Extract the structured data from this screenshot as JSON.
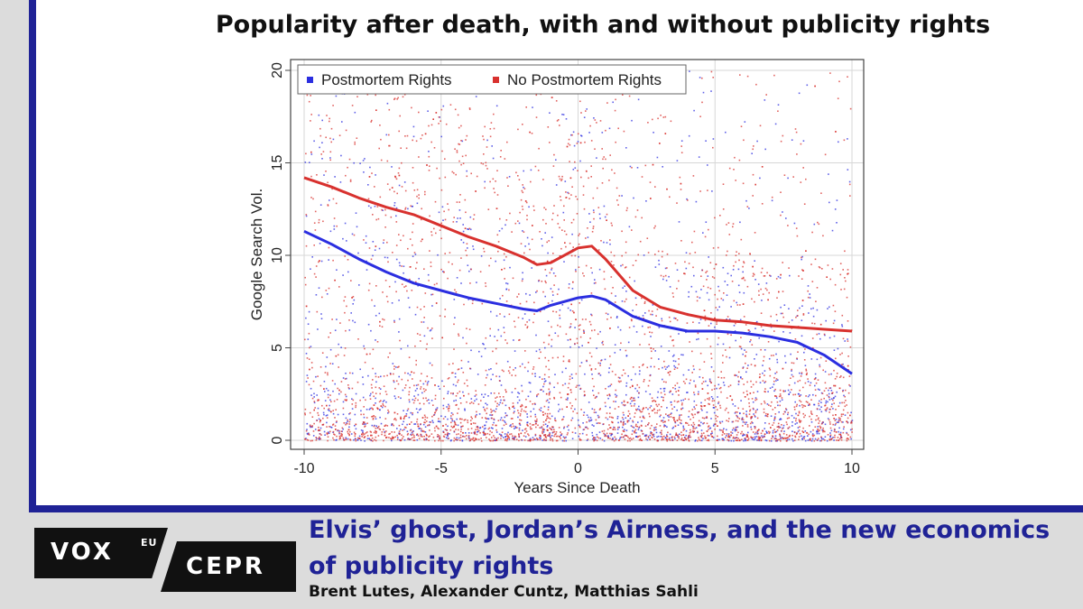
{
  "chart_data": {
    "type": "scatter",
    "title": "Popularity after death, with and without publicity rights",
    "xlabel": "Years Since Death",
    "ylabel": "Google Search Vol.",
    "xlim": [
      -10,
      10
    ],
    "ylim": [
      0,
      20
    ],
    "x_ticks": [
      -10,
      -5,
      0,
      5,
      10
    ],
    "y_ticks": [
      0,
      5,
      10,
      15,
      20
    ],
    "grid": true,
    "legend": {
      "placement": "top-left",
      "entries": [
        "Postmortem Rights",
        "No Postmortem Rights"
      ]
    },
    "series": [
      {
        "name": "Postmortem Rights",
        "color": "#2b2ee0",
        "fit_line": {
          "x": [
            -10,
            -9,
            -8,
            -7,
            -6,
            -5,
            -4,
            -3,
            -2,
            -1.5,
            -1,
            0,
            0.5,
            1,
            2,
            3,
            4,
            5,
            6,
            7,
            8,
            9,
            10
          ],
          "y": [
            11.3,
            10.6,
            9.8,
            9.1,
            8.5,
            8.1,
            7.7,
            7.4,
            7.1,
            7.0,
            7.3,
            7.7,
            7.8,
            7.6,
            6.7,
            6.2,
            5.9,
            5.9,
            5.8,
            5.6,
            5.3,
            4.6,
            3.6
          ]
        }
      },
      {
        "name": "No Postmortem Rights",
        "color": "#d8312e",
        "fit_line": {
          "x": [
            -10,
            -9,
            -8,
            -7,
            -6,
            -5,
            -4,
            -3,
            -2,
            -1.5,
            -1,
            0,
            0.5,
            1,
            2,
            3,
            4,
            5,
            6,
            7,
            8,
            9,
            10
          ],
          "y": [
            14.2,
            13.7,
            13.1,
            12.6,
            12.2,
            11.6,
            11.0,
            10.5,
            9.9,
            9.5,
            9.6,
            10.4,
            10.5,
            9.8,
            8.1,
            7.2,
            6.8,
            6.5,
            6.4,
            6.2,
            6.1,
            6.0,
            5.9
          ]
        }
      }
    ]
  },
  "colors": {
    "frame_blue": "#1f2296",
    "grid": "#d7d7d7"
  },
  "footer": {
    "logo_left": "VOX",
    "logo_left_sup": "EU",
    "logo_right": "CEPR",
    "article_title": "Elvis’ ghost, Jordan’s Airness, and the new economics of publicity rights",
    "authors": "Brent Lutes, Alexander Cuntz, Matthias Sahli"
  }
}
